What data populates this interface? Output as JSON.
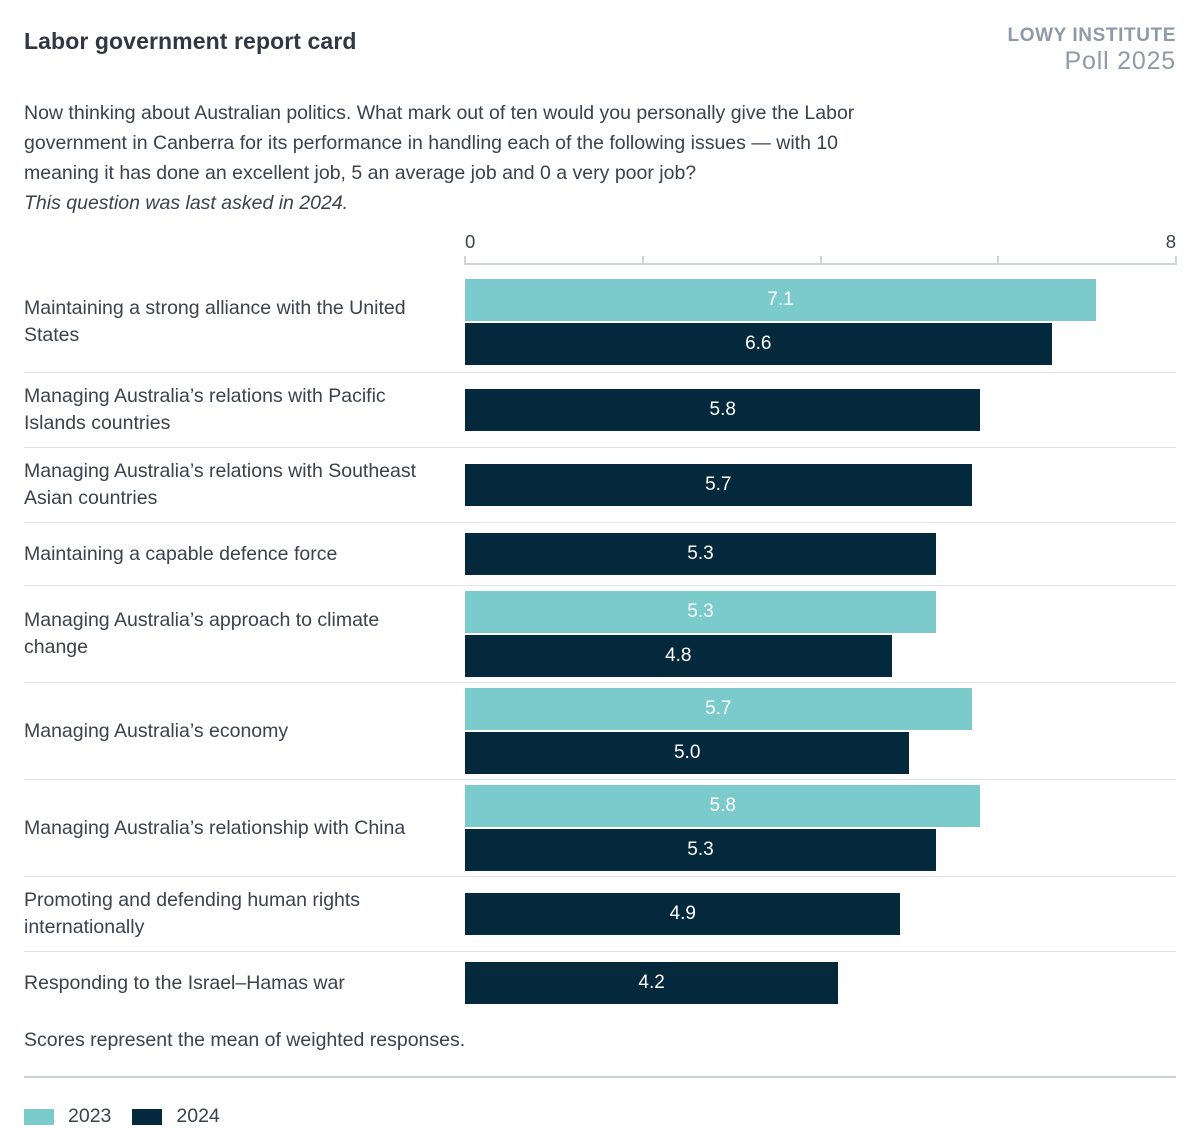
{
  "header": {
    "title": "Labor government report card",
    "brand_line1": "LOWY INSTITUTE",
    "brand_line2": "Poll 2025",
    "question": "Now thinking about Australian politics. What mark out of ten would you personally give the Labor government in Canberra for its performance in handling each of the following issues — with 10 meaning it has done an excellent job, 5 an average job and 0 a very poor job?",
    "question_note": "This question was last asked in 2024."
  },
  "chart_data": {
    "type": "bar",
    "orientation": "horizontal",
    "title": "Labor government report card",
    "categories": [
      "Maintaining a strong alliance with the United States",
      "Managing Australia’s relations with Pacific Islands countries",
      "Managing Australia’s relations with Southeast Asian countries",
      "Maintaining a capable defence force",
      "Managing Australia’s approach to climate change",
      "Managing Australia’s economy",
      "Managing Australia’s relationship with China",
      "Promoting and defending human rights internationally",
      "Responding to the Israel–Hamas war"
    ],
    "series": [
      {
        "name": "2023",
        "color": "#7bcbcd",
        "values": [
          7.1,
          null,
          null,
          null,
          5.3,
          5.7,
          5.8,
          null,
          null
        ]
      },
      {
        "name": "2024",
        "color": "#04283c",
        "values": [
          6.6,
          5.8,
          5.7,
          5.3,
          4.8,
          5.0,
          5.3,
          4.9,
          4.2
        ]
      }
    ],
    "xlim": [
      0,
      8
    ],
    "x_tick_values": [
      0,
      2,
      4,
      6,
      8
    ],
    "x_axis_labels": {
      "min": "0",
      "max": "8"
    },
    "grid": false,
    "legend_position": "bottom-left"
  },
  "footnote": "Scores represent the mean of weighted responses.",
  "legend": [
    {
      "label": "2023",
      "color": "#7bcbcd"
    },
    {
      "label": "2024",
      "color": "#04283c"
    }
  ]
}
